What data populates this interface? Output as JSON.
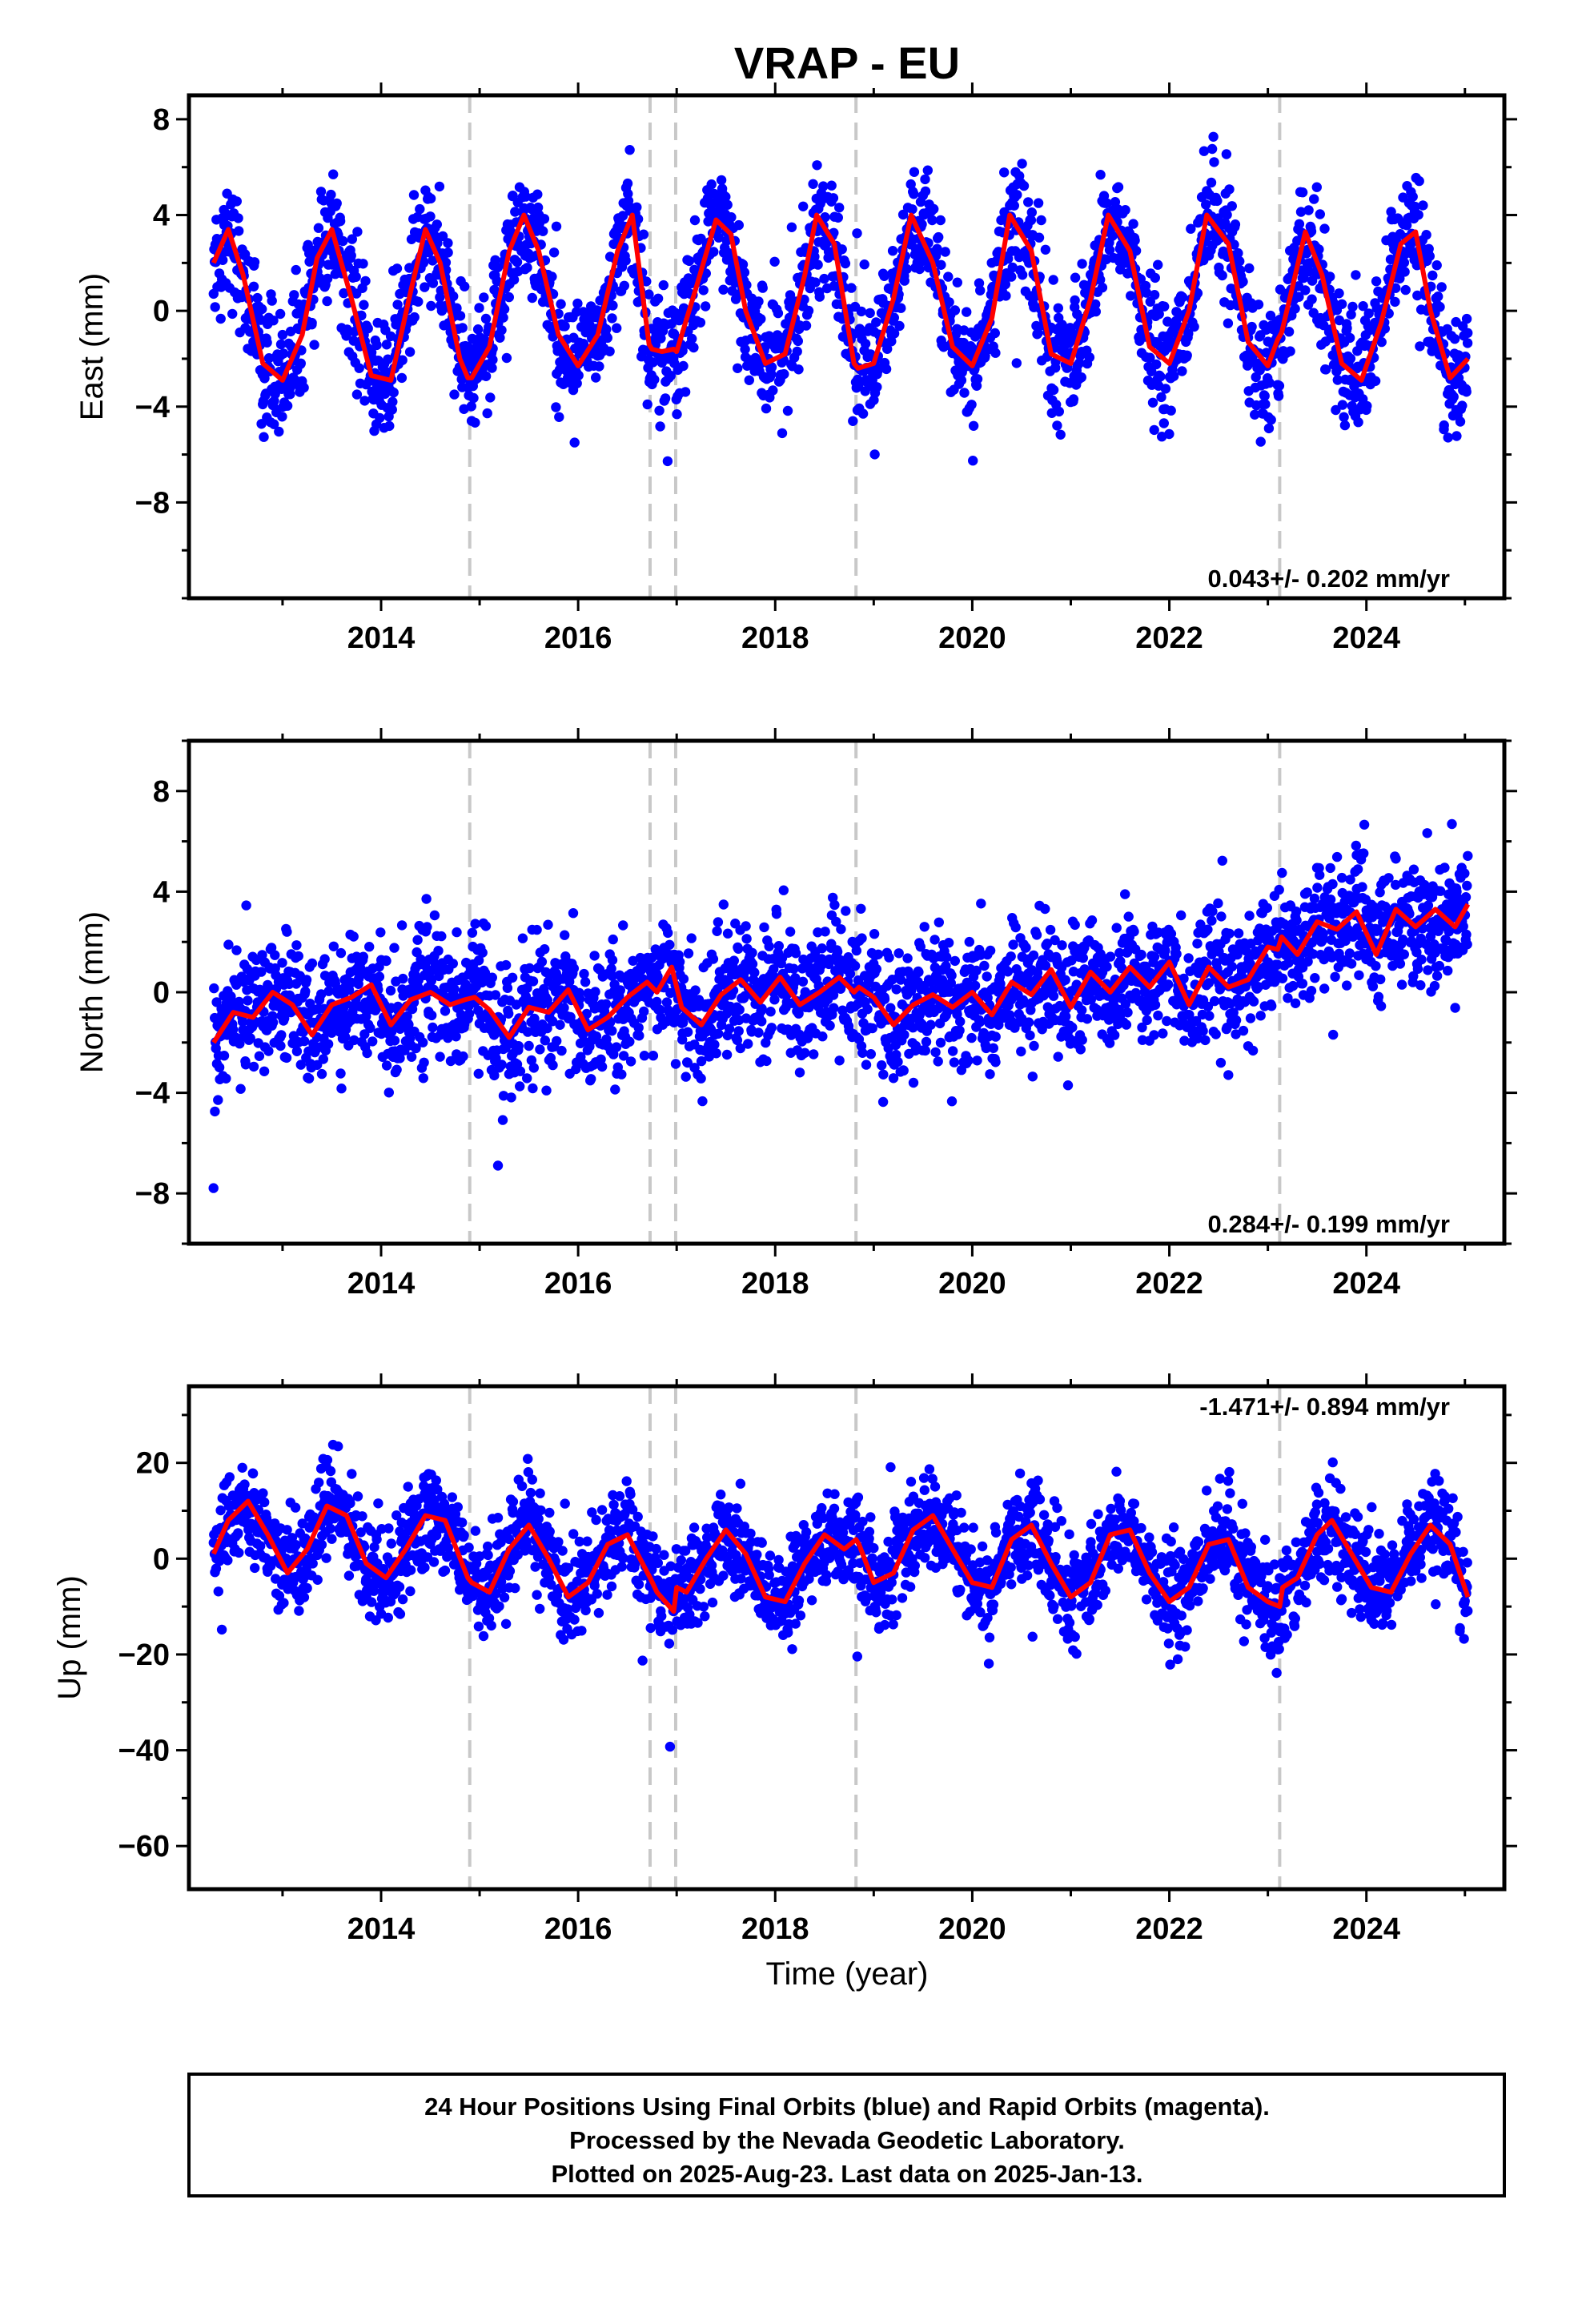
{
  "chart_data": {
    "type": "scatter",
    "title": "VRAP - EU",
    "xlabel": "Time (year)",
    "xlim": [
      2012.05,
      2025.4
    ],
    "x_ticks": [
      2014,
      2016,
      2018,
      2020,
      2022,
      2024
    ],
    "grid": false,
    "equipment_change_epochs": [
      2014.9,
      2016.73,
      2016.99,
      2018.82,
      2023.12
    ],
    "first_data_year": 2012.3,
    "last_data_year": 2025.03,
    "colors": {
      "final_orbits": "#0000ff",
      "rapid_orbits": "#ff00ff",
      "model": "#ff0000",
      "breaks": "#c8c8c8"
    },
    "panels": [
      {
        "ylabel": "East (mm)",
        "ylim": [
          -12,
          9
        ],
        "y_ticks": [
          8,
          4,
          0,
          -4,
          -8
        ],
        "y_tick_labels": [
          "8",
          "4",
          "0",
          "−4",
          "−8"
        ],
        "rate_text": "0.043+/- 0.202 mm/yr",
        "rate_position": "bottom-right",
        "model_curve": {
          "x": [
            2012.3,
            2012.45,
            2012.6,
            2012.8,
            2013.0,
            2013.2,
            2013.35,
            2013.5,
            2013.7,
            2013.9,
            2014.1,
            2014.3,
            2014.45,
            2014.6,
            2014.8,
            2014.88,
            2014.92,
            2015.1,
            2015.3,
            2015.45,
            2015.6,
            2015.8,
            2016.0,
            2016.2,
            2016.4,
            2016.55,
            2016.72,
            2016.75,
            2016.85,
            2016.97,
            2017.0,
            2017.2,
            2017.4,
            2017.55,
            2017.7,
            2017.9,
            2018.1,
            2018.3,
            2018.42,
            2018.6,
            2018.8,
            2018.84,
            2019.0,
            2019.2,
            2019.38,
            2019.6,
            2019.8,
            2020.0,
            2020.2,
            2020.38,
            2020.6,
            2020.8,
            2021.0,
            2021.2,
            2021.38,
            2021.6,
            2021.8,
            2022.0,
            2022.2,
            2022.38,
            2022.6,
            2022.8,
            2023.0,
            2023.1,
            2023.14,
            2023.25,
            2023.38,
            2023.55,
            2023.75,
            2023.95,
            2024.15,
            2024.35,
            2024.5,
            2024.65,
            2024.85,
            2025.03
          ],
          "y": [
            2.0,
            3.4,
            1.5,
            -2.2,
            -2.9,
            -1.0,
            2.2,
            3.4,
            0.5,
            -2.7,
            -2.9,
            0.8,
            3.4,
            2.0,
            -2.0,
            -2.8,
            -2.8,
            -1.5,
            2.5,
            4.0,
            2.5,
            -1.0,
            -2.3,
            -1.0,
            2.5,
            4.0,
            -1.4,
            -1.6,
            -1.7,
            -1.6,
            -1.7,
            1.0,
            3.8,
            3.2,
            0.0,
            -2.2,
            -1.8,
            1.5,
            4.0,
            2.8,
            -2.2,
            -2.4,
            -2.2,
            0.5,
            4.0,
            2.0,
            -1.5,
            -2.3,
            -0.3,
            4.0,
            2.5,
            -1.8,
            -2.2,
            0.5,
            4.0,
            2.5,
            -1.5,
            -2.2,
            0.0,
            4.0,
            2.8,
            -1.3,
            -2.3,
            -1.2,
            -0.9,
            1.0,
            3.3,
            1.5,
            -2.2,
            -2.9,
            -0.5,
            2.8,
            3.3,
            0.0,
            -2.8,
            -2.0
          ]
        }
      },
      {
        "ylabel": "North (mm)",
        "ylim": [
          -10,
          10
        ],
        "y_ticks": [
          8,
          4,
          0,
          -4,
          -8
        ],
        "y_tick_labels": [
          "8",
          "4",
          "0",
          "−4",
          "−8"
        ],
        "rate_text": "0.284+/- 0.199 mm/yr",
        "rate_position": "bottom-right",
        "model_curve": {
          "x": [
            2012.3,
            2012.5,
            2012.7,
            2012.9,
            2013.1,
            2013.3,
            2013.5,
            2013.7,
            2013.9,
            2014.1,
            2014.3,
            2014.5,
            2014.7,
            2014.85,
            2014.95,
            2015.1,
            2015.3,
            2015.5,
            2015.7,
            2015.9,
            2016.1,
            2016.3,
            2016.5,
            2016.7,
            2016.8,
            2016.95,
            2017.05,
            2017.25,
            2017.45,
            2017.65,
            2017.85,
            2018.05,
            2018.25,
            2018.45,
            2018.65,
            2018.8,
            2018.85,
            2019.0,
            2019.2,
            2019.4,
            2019.6,
            2019.8,
            2020.0,
            2020.2,
            2020.4,
            2020.6,
            2020.8,
            2021.0,
            2021.2,
            2021.4,
            2021.6,
            2021.8,
            2022.0,
            2022.2,
            2022.4,
            2022.6,
            2022.8,
            2023.0,
            2023.1,
            2023.14,
            2023.3,
            2023.5,
            2023.7,
            2023.9,
            2024.1,
            2024.3,
            2024.5,
            2024.7,
            2024.9,
            2025.03
          ],
          "y": [
            -2.0,
            -0.8,
            -1.0,
            0.0,
            -0.5,
            -1.7,
            -0.5,
            -0.2,
            0.3,
            -1.3,
            -0.3,
            0.0,
            -0.5,
            -0.3,
            -0.2,
            -0.7,
            -1.8,
            -0.6,
            -0.8,
            0.1,
            -1.5,
            -1.0,
            -0.2,
            0.4,
            0.0,
            1.0,
            -0.6,
            -1.3,
            -0.1,
            0.5,
            -0.4,
            0.6,
            -0.5,
            0.0,
            0.6,
            0.0,
            0.2,
            -0.2,
            -1.3,
            -0.5,
            -0.1,
            -0.6,
            0.0,
            -0.9,
            0.4,
            -0.1,
            0.9,
            -0.6,
            0.8,
            0.0,
            1.0,
            0.2,
            1.2,
            -0.5,
            1.0,
            0.2,
            0.5,
            1.8,
            1.7,
            2.2,
            1.5,
            2.8,
            2.5,
            3.2,
            1.5,
            3.3,
            2.6,
            3.3,
            2.6,
            3.5
          ]
        }
      },
      {
        "ylabel": "Up (mm)",
        "ylim": [
          -69,
          36
        ],
        "y_ticks": [
          20,
          0,
          -20,
          -40,
          -60
        ],
        "y_tick_labels": [
          "20",
          "0",
          "−20",
          "−40",
          "−60"
        ],
        "rate_text": "-1.471+/- 0.894 mm/yr",
        "rate_position": "top-right",
        "model_curve": {
          "x": [
            2012.3,
            2012.45,
            2012.65,
            2012.85,
            2013.05,
            2013.25,
            2013.45,
            2013.65,
            2013.85,
            2014.05,
            2014.25,
            2014.45,
            2014.65,
            2014.88,
            2014.92,
            2015.1,
            2015.3,
            2015.5,
            2015.7,
            2015.9,
            2016.1,
            2016.3,
            2016.5,
            2016.73,
            2016.8,
            2016.97,
            2017.0,
            2017.1,
            2017.3,
            2017.5,
            2017.7,
            2017.9,
            2018.1,
            2018.3,
            2018.5,
            2018.7,
            2018.82,
            2018.85,
            2019.0,
            2019.2,
            2019.4,
            2019.6,
            2019.8,
            2020.0,
            2020.2,
            2020.4,
            2020.6,
            2020.8,
            2021.0,
            2021.2,
            2021.4,
            2021.6,
            2021.8,
            2022.0,
            2022.2,
            2022.4,
            2022.6,
            2022.8,
            2023.0,
            2023.12,
            2023.15,
            2023.3,
            2023.5,
            2023.65,
            2023.85,
            2024.05,
            2024.25,
            2024.45,
            2024.65,
            2024.85,
            2025.03
          ],
          "y": [
            1.0,
            8.0,
            12.0,
            5.0,
            -3.0,
            2.0,
            11.0,
            9.0,
            -1.0,
            -4.0,
            2.0,
            9.0,
            8.0,
            -4.0,
            -5.0,
            -7.0,
            2.0,
            7.0,
            0.0,
            -8.0,
            -5.0,
            3.0,
            5.0,
            -4.0,
            -7.0,
            -11.0,
            -6.0,
            -7.0,
            0.0,
            6.0,
            1.0,
            -8.0,
            -9.0,
            -1.0,
            5.0,
            2.0,
            4.0,
            3.0,
            -5.0,
            -3.0,
            6.0,
            9.0,
            2.0,
            -5.0,
            -6.0,
            4.0,
            7.0,
            -1.0,
            -8.0,
            -5.0,
            5.0,
            6.0,
            -3.0,
            -9.0,
            -6.0,
            3.0,
            4.0,
            -6.0,
            -9.0,
            -10.0,
            -6.0,
            -4.0,
            5.0,
            8.0,
            1.0,
            -6.0,
            -7.0,
            1.0,
            7.0,
            3.0,
            -8.0
          ]
        }
      }
    ],
    "legend_box_lines": [
      "24 Hour Positions Using Final Orbits (blue) and Rapid Orbits (magenta).",
      "Processed by the Nevada Geodetic Laboratory.",
      "Plotted on 2025-Aug-23. Last data on 2025-Jan-13."
    ]
  }
}
